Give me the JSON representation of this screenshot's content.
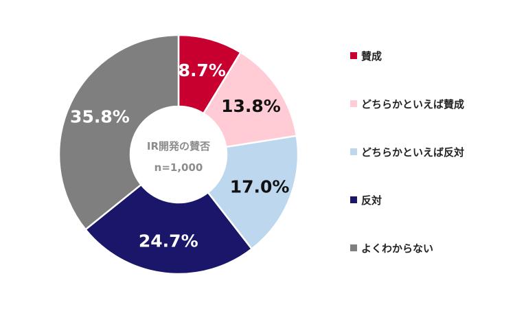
{
  "chart_data": {
    "type": "pie",
    "donut": true,
    "title": "IR開発の賛否",
    "subtitle": "n=1,000",
    "legend_position": "right",
    "slices": [
      {
        "name": "賛成",
        "value": 8.7,
        "label": "8.7%",
        "color": "#c8002f",
        "text_color": "#ffffff"
      },
      {
        "name": "どちらかといえば賛成",
        "value": 13.8,
        "label": "13.8%",
        "color": "#ffccd5",
        "text_color": "#111111"
      },
      {
        "name": "どちらかといえば反対",
        "value": 17.0,
        "label": "17.0%",
        "color": "#bdd7ee",
        "text_color": "#111111"
      },
      {
        "name": "反対",
        "value": 24.7,
        "label": "24.7%",
        "color": "#1a176b",
        "text_color": "#ffffff"
      },
      {
        "name": "よくわからない",
        "value": 35.8,
        "label": "35.8%",
        "color": "#7f7f7f",
        "text_color": "#ffffff"
      }
    ]
  }
}
